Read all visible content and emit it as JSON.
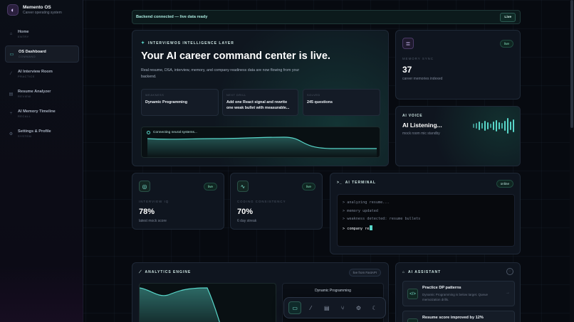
{
  "app": {
    "name": "Memento OS",
    "subtitle": "Career operating system"
  },
  "sidebar": {
    "items": [
      {
        "label": "Home",
        "sub": "ENTRY",
        "icon": "home-icon",
        "active": false
      },
      {
        "label": "OS Dashboard",
        "sub": "COMMAND",
        "icon": "monitor-icon",
        "active": true
      },
      {
        "label": "AI Interview Room",
        "sub": "PRACTICE",
        "icon": "mic-icon",
        "active": false
      },
      {
        "label": "Resume Analyzer",
        "sub": "REVIEW",
        "icon": "document-icon",
        "active": false
      },
      {
        "label": "AI Memory Timeline",
        "sub": "RECALL",
        "icon": "timeline-icon",
        "active": false
      },
      {
        "label": "Settings & Profile",
        "sub": "SYSTEM",
        "icon": "gear-icon",
        "active": false
      }
    ]
  },
  "status": {
    "text": "Backend connected — live data ready",
    "pill": "Live"
  },
  "hero": {
    "kicker": "INTERVIEWOS INTELLIGENCE LAYER",
    "title": "Your AI career command center is live.",
    "desc": "Real resume, DSA, interview, memory, and company readiness data are now flowing from your backend.",
    "minis": [
      {
        "k": "WEAKNESS",
        "v": "Dynamic Programming"
      },
      {
        "k": "NEXT DRILL",
        "v": "Add one React signal and rewrite one weak bullet with measurable..."
      },
      {
        "k": "SOLVED",
        "v": "245 questions"
      }
    ],
    "neural_label": "Connecting neural systems..."
  },
  "memsync": {
    "k": "MEMORY SYNC",
    "v": "37",
    "sub": "career memories indexed",
    "pill": "live"
  },
  "voice": {
    "k": "AI VOICE",
    "title": "AI Listening...",
    "sub": "mock room mic standby"
  },
  "stats": [
    {
      "k": "INTERVIEW IQ",
      "v": "78%",
      "sub": "latest mock score",
      "pill": "live",
      "icon": "target-icon"
    },
    {
      "k": "CODING CONSISTENCY",
      "v": "70%",
      "sub": "6 day streak",
      "pill": "live",
      "icon": "pulse-icon"
    }
  ],
  "terminal": {
    "title": "AI TERMINAL",
    "status": "online",
    "lines": [
      "> analyzing resume...",
      "> memory updated",
      "> weakness detected: resume bullets",
      "> company re"
    ]
  },
  "analytics": {
    "title": "ANALYTICS ENGINE",
    "pill": "live from FastAPI",
    "panel_title": "Dynamic Programming"
  },
  "assistant": {
    "title": "AI ASSISTANT",
    "items": [
      {
        "title": "Practice DP patterns",
        "desc": "Dynamic Programming is below target. Queue memoization drills."
      },
      {
        "title": "Resume score improved by 12%",
        "desc": ""
      }
    ]
  },
  "dock": {
    "items": [
      "monitor-icon",
      "mic-icon",
      "document-icon",
      "timeline-icon",
      "gear-icon",
      "moon-icon"
    ]
  },
  "colors": {
    "accent": "#58d6c9",
    "brand": "#6d4ec9",
    "background": "#070a10"
  }
}
